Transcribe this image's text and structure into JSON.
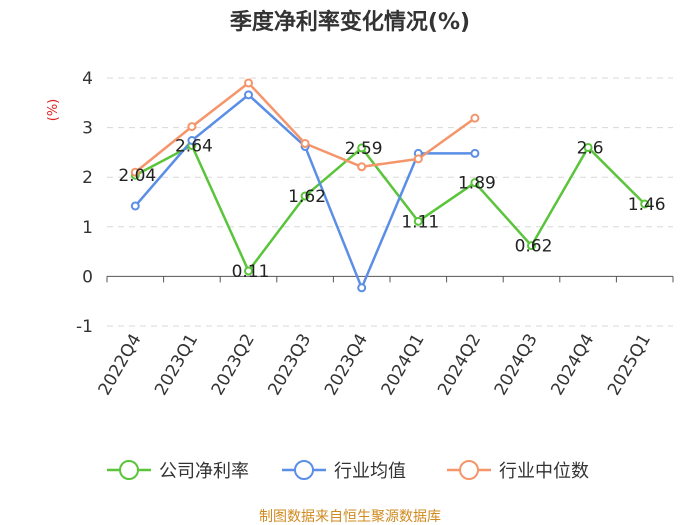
{
  "chart_data": {
    "type": "line",
    "title": "季度净利率变化情况(%)",
    "ylabel": "(%)",
    "ylim": [
      -1,
      4
    ],
    "yticks": [
      -1,
      0,
      1,
      2,
      3,
      4
    ],
    "ytick_labels": [
      "-1",
      "0",
      "1",
      "2",
      "3",
      "4"
    ],
    "grid": true,
    "legend_position": "bottom",
    "categories": [
      "2022Q4",
      "2023Q1",
      "2023Q2",
      "2023Q3",
      "2023Q4",
      "2024Q1",
      "2024Q2",
      "2024Q3",
      "2024Q4",
      "2025Q1"
    ],
    "series": [
      {
        "name": "公司净利率",
        "color": "#5ac43a",
        "values": [
          2.04,
          2.64,
          0.11,
          1.62,
          2.59,
          1.11,
          1.89,
          0.62,
          2.6,
          1.46
        ],
        "labels": [
          "2.04",
          "2.64",
          "0.11",
          "1.62",
          "2.59",
          "1.11",
          "1.89",
          "0.62",
          "2.6",
          "1.46"
        ]
      },
      {
        "name": "行业均值",
        "color": "#5b8ee6",
        "values": [
          1.42,
          2.74,
          3.66,
          2.62,
          -0.23,
          2.48,
          2.48,
          null,
          null,
          null
        ]
      },
      {
        "name": "行业中位数",
        "color": "#f4956a",
        "values": [
          2.1,
          3.02,
          3.9,
          2.68,
          2.21,
          2.37,
          3.19,
          null,
          null,
          null
        ]
      }
    ],
    "source": "制图数据来自恒生聚源数据库"
  }
}
